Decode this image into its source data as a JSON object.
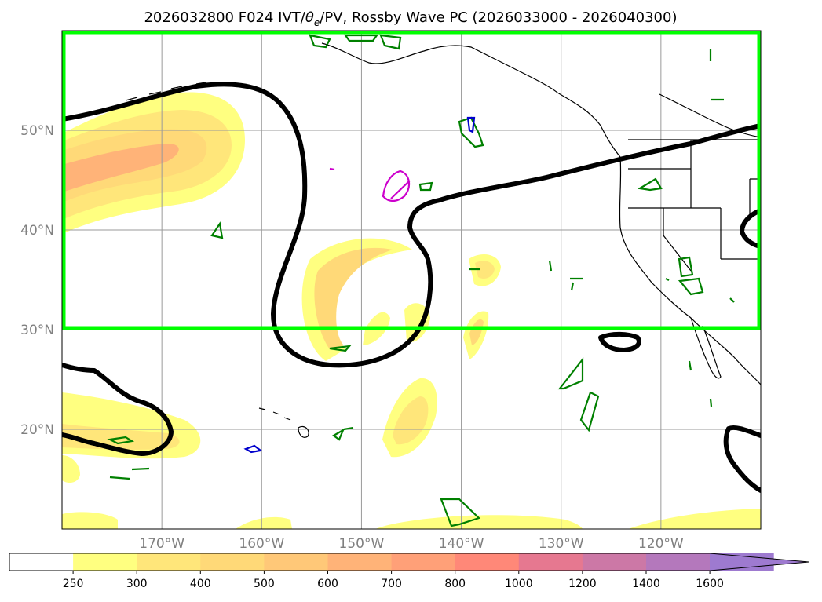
{
  "chart_data": {
    "type": "map",
    "title_pre": "2026032800 F024 IVT/",
    "title_theta": "θ",
    "title_sub": "e",
    "title_post": "/PV, Rossby Wave PC (2026033000 - 2026040300)",
    "lon_range": [
      -180,
      -110
    ],
    "lat_range": [
      10,
      60
    ],
    "lat_ticks": [
      {
        "value": 20,
        "label": "20°N"
      },
      {
        "value": 30,
        "label": "30°N"
      },
      {
        "value": 40,
        "label": "40°N"
      },
      {
        "value": 50,
        "label": "50°N"
      }
    ],
    "lon_ticks": [
      {
        "value": -170,
        "label": "170°W"
      },
      {
        "value": -160,
        "label": "160°W"
      },
      {
        "value": -150,
        "label": "150°W"
      },
      {
        "value": -140,
        "label": "140°W"
      },
      {
        "value": -130,
        "label": "130°W"
      },
      {
        "value": -120,
        "label": "120°W"
      }
    ],
    "grid": true,
    "highlight_box": {
      "lon": [
        -180,
        -110
      ],
      "lat": [
        30,
        60
      ],
      "color": "#00ff00"
    },
    "colorbar": {
      "levels": [
        250,
        300,
        400,
        500,
        600,
        700,
        800,
        1000,
        1200,
        1400,
        1600
      ],
      "labels": [
        "250",
        "300",
        "400",
        "500",
        "600",
        "700",
        "800",
        "1000",
        "1200",
        "1400",
        "1600"
      ],
      "colors": [
        "#ffffff",
        "#ffff80",
        "#ffe67a",
        "#ffd978",
        "#ffc878",
        "#ffb378",
        "#ffa078",
        "#ff8878",
        "#e67890",
        "#cc78a6",
        "#b478bc",
        "#9e7ad0"
      ],
      "extend": "max"
    }
  }
}
